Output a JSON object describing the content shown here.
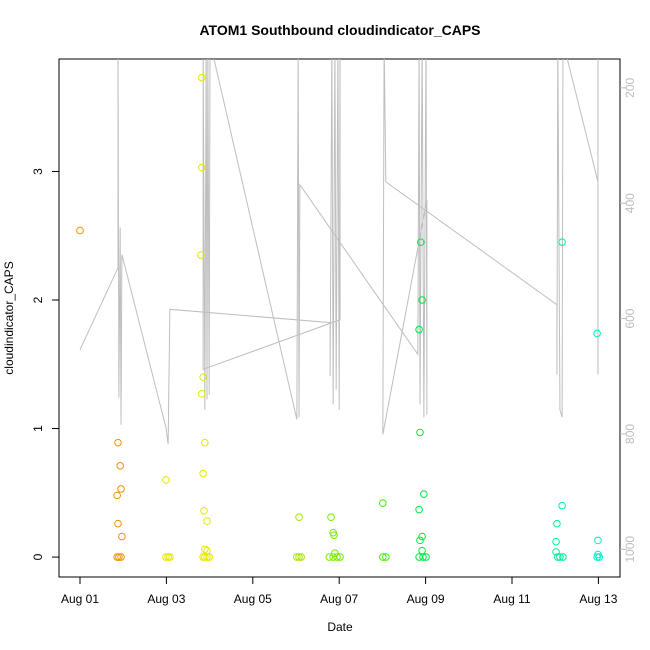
{
  "chart_data": {
    "type": "scatter",
    "title": "ATOM1 Southbound cloudindicator_CAPS",
    "x_label": "Date",
    "y_label": "cloudindicator_CAPS",
    "xlim": [
      0.514,
      13.5
    ],
    "xticks": [
      {
        "value": 1,
        "label": "Aug 01"
      },
      {
        "value": 3,
        "label": "Aug 03"
      },
      {
        "value": 5,
        "label": "Aug 05"
      },
      {
        "value": 7,
        "label": "Aug 07"
      },
      {
        "value": 9,
        "label": "Aug 09"
      },
      {
        "value": 11,
        "label": "Aug 11"
      },
      {
        "value": 13,
        "label": "Aug 13"
      }
    ],
    "ylim": [
      -0.155,
      3.875
    ],
    "yticks": [
      0,
      1,
      2,
      3
    ],
    "y2lim": [
      1048,
      150
    ],
    "y2ticks": [
      200,
      400,
      600,
      800,
      1000
    ],
    "series": [
      {
        "type": "line",
        "axis": "y2",
        "color": "#BEBEBE",
        "x": [
          1.0,
          1.88,
          1.88,
          1.9,
          1.93,
          1.95,
          1.97,
          2.99,
          3.04,
          3.08,
          6.79,
          6.79,
          6.83,
          6.86,
          6.9,
          6.93,
          6.97,
          7.0,
          7.02,
          7.02,
          3.85,
          3.85,
          3.89,
          3.92,
          3.94,
          3.96,
          3.99,
          4.01,
          6.02,
          6.05,
          6.07,
          6.09,
          8.82,
          8.85,
          8.87,
          8.92,
          8.96,
          9.01,
          9.03,
          9.03,
          8.01,
          8.04,
          8.08,
          12.04,
          12.04,
          12.06,
          12.11,
          12.16,
          12.18,
          12.99,
          12.99,
          12.99
        ],
        "values": [
          654,
          512,
          120,
          737,
          442,
          784,
          489,
          789,
          818,
          584,
          607,
          700,
          120,
          749,
          120,
          723,
          120,
          758,
          120,
          602,
          688,
          120,
          758,
          120,
          740,
          120,
          732,
          120,
          775,
          120,
          771,
          368,
          662,
          120,
          749,
          120,
          771,
          120,
          766,
          394,
          801,
          120,
          363,
          576,
          697,
          120,
          758,
          771,
          120,
          363,
          697,
          120
        ]
      },
      {
        "color": "#F39200",
        "x": [
          1.0,
          1.88,
          1.93,
          1.95,
          1.86,
          1.88,
          1.97,
          1.86,
          1.9,
          1.95
        ],
        "values": [
          2.54,
          0.89,
          0.71,
          0.53,
          0.48,
          0.26,
          0.16,
          0,
          0,
          0
        ]
      },
      {
        "color": "#E6E600",
        "x": [
          2.99,
          2.99,
          3.04,
          3.08,
          3.82,
          3.82,
          3.8,
          3.85,
          3.82,
          3.89,
          3.85,
          3.87,
          3.94,
          3.89,
          3.94,
          3.85,
          3.89,
          3.94,
          3.99
        ],
        "values": [
          0.6,
          0,
          0,
          0,
          3.73,
          3.03,
          2.35,
          1.4,
          1.27,
          0.89,
          0.65,
          0.36,
          0.28,
          0.06,
          0.05,
          0,
          0,
          0,
          0
        ]
      },
      {
        "color": "#A6E600",
        "x": [
          6.07,
          6.02,
          6.07,
          6.12
        ],
        "values": [
          0.31,
          0,
          0,
          0
        ]
      },
      {
        "color": "#70EE00",
        "x": [
          6.81,
          6.86,
          6.88,
          6.9,
          6.77,
          6.86,
          6.95,
          7.02
        ],
        "values": [
          0.31,
          0.19,
          0.17,
          0.03,
          0,
          0,
          0,
          0
        ]
      },
      {
        "color": "#40EE00",
        "x": [
          8.01,
          8.01,
          8.08
        ],
        "values": [
          0.42,
          0,
          0
        ]
      },
      {
        "color": "#00E840",
        "x": [
          8.89,
          8.92,
          8.85,
          8.87,
          8.96,
          8.85,
          8.92,
          8.87,
          8.92,
          8.85,
          8.94,
          9.01
        ],
        "values": [
          2.45,
          2.0,
          1.77,
          0.97,
          0.49,
          0.37,
          0.16,
          0.13,
          0.05,
          0,
          0,
          0
        ]
      },
      {
        "color": "#00EEA0",
        "x": [
          12.16,
          12.02,
          12.04,
          12.16,
          12.02,
          12.06,
          12.11,
          12.18
        ],
        "values": [
          2.45,
          0.12,
          0.26,
          0.4,
          0.04,
          0,
          0,
          0
        ]
      },
      {
        "color": "#00EEC8",
        "x": [
          12.97,
          12.99,
          12.99,
          12.97,
          13.02
        ],
        "values": [
          1.74,
          0.13,
          0.02,
          0,
          0
        ]
      }
    ]
  }
}
